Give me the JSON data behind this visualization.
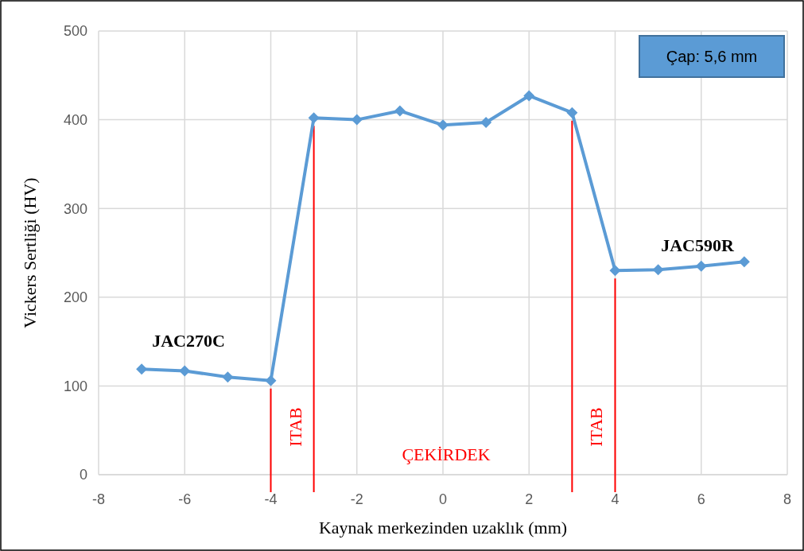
{
  "chart_data": {
    "type": "line",
    "xlabel": "Kaynak merkezinden uzaklık (mm)",
    "ylabel": "Vickers Sertliği (HV)",
    "x": [
      -7,
      -6,
      -5,
      -4,
      -3,
      -2,
      -1,
      0,
      1,
      2,
      3,
      4,
      5,
      6,
      7
    ],
    "series": [
      {
        "color": "#5b9bd5",
        "values": [
          119,
          117,
          110,
          106,
          402,
          400,
          410,
          394,
          397,
          427,
          408,
          230,
          231,
          235,
          240
        ]
      }
    ],
    "xlim": [
      -8,
      8
    ],
    "xticks": [
      -8,
      -6,
      -4,
      -2,
      0,
      2,
      4,
      6,
      8
    ],
    "ylim": [
      0,
      500
    ],
    "yticks": [
      0,
      100,
      200,
      300,
      400,
      500
    ],
    "grid": true,
    "marker": "diamond",
    "line_style": "solid",
    "ref_lines": [
      {
        "axis": "x",
        "value": -4,
        "label": "ITAB",
        "color": "#ff0000"
      },
      {
        "axis": "x",
        "value": -3,
        "color": "#ff0000"
      },
      {
        "axis": "x",
        "value": 3,
        "label": "ITAB",
        "color": "#ff0000"
      },
      {
        "axis": "x",
        "value": 4,
        "color": "#ff0000"
      }
    ],
    "annotations": [
      "Çap: 5,6 mm",
      "JAC270C",
      "JAC590R",
      "ÇEKİRDEK"
    ]
  }
}
